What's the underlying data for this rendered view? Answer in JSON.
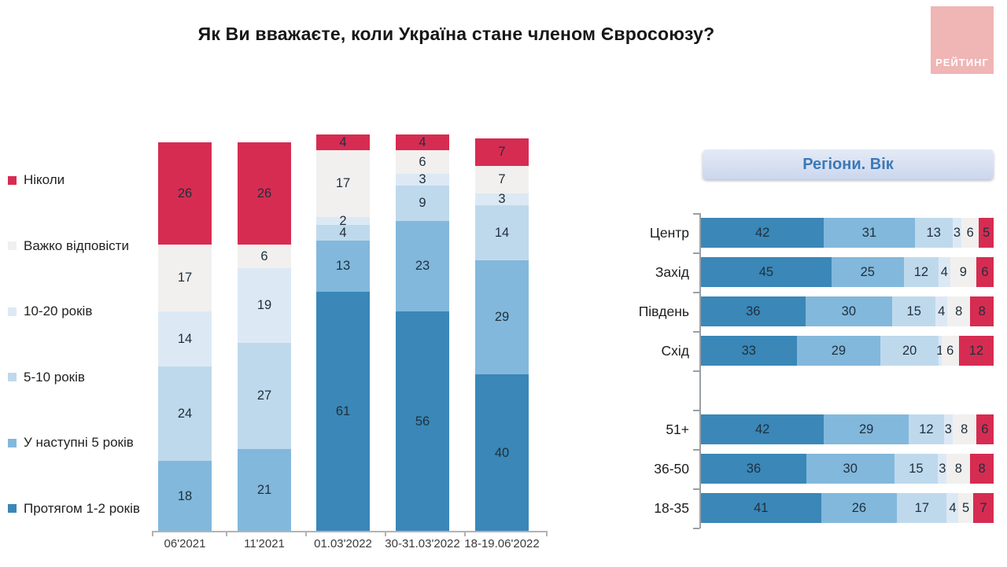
{
  "title": "Як Ви вважаєте, коли Україна стане членом Євросоюзу?",
  "logo": {
    "text": "РЕЙТИНГ",
    "bg_color": "#f0b5b5"
  },
  "colors": {
    "within_1_2_years": "#3a87b8",
    "next_5_years": "#82b8dc",
    "5_10_years": "#bfd9ec",
    "10_20_years": "#dce9f5",
    "hard_to_answer": "#f1f0ee",
    "never": "#d62c52",
    "label_text": "#20303d"
  },
  "legend": [
    {
      "label": "Ніколи",
      "color": "#d62c52"
    },
    {
      "label": "Важко відповісти",
      "color": "#f1f0ee"
    },
    {
      "label": "10-20 років",
      "color": "#dce9f5"
    },
    {
      "label": "5-10 років",
      "color": "#bfd9ec"
    },
    {
      "label": "У наступні 5 років",
      "color": "#82b8dc"
    },
    {
      "label": "Протягом 1-2 років",
      "color": "#3a87b8"
    }
  ],
  "chart_data": [
    {
      "type": "bar",
      "stacked": true,
      "orientation": "vertical",
      "title": "",
      "categories": [
        "06'2021",
        "11'2021",
        "01.03'2022",
        "30-31.03'2022",
        "18-19.06'2022"
      ],
      "series": [
        {
          "name": "Протягом 1-2 років",
          "color": "#3a87b8",
          "values": [
            null,
            null,
            61,
            56,
            40
          ]
        },
        {
          "name": "У наступні 5 років",
          "color": "#82b8dc",
          "values": [
            18,
            21,
            13,
            23,
            29
          ]
        },
        {
          "name": "5-10 років",
          "color": "#bfd9ec",
          "values": [
            24,
            27,
            4,
            9,
            14
          ]
        },
        {
          "name": "10-20 років",
          "color": "#dce9f5",
          "values": [
            14,
            19,
            2,
            3,
            3
          ]
        },
        {
          "name": "Важко відповісти",
          "color": "#f1f0ee",
          "values": [
            17,
            6,
            17,
            6,
            7
          ]
        },
        {
          "name": "Ніколи",
          "color": "#d62c52",
          "values": [
            26,
            26,
            4,
            4,
            7
          ]
        }
      ],
      "grid": false,
      "legend_position": "left"
    },
    {
      "type": "bar",
      "stacked": true,
      "orientation": "horizontal",
      "title": "Регіони. Вік",
      "categories": [
        "Центр",
        "Захід",
        "Південь",
        "Схід",
        "51+",
        "36-50",
        "18-35"
      ],
      "gap_after_index": 3,
      "series": [
        {
          "name": "Протягом 1-2 років",
          "color": "#3a87b8",
          "values": [
            42,
            45,
            36,
            33,
            42,
            36,
            41
          ]
        },
        {
          "name": "У наступні 5 років",
          "color": "#82b8dc",
          "values": [
            31,
            25,
            30,
            29,
            29,
            30,
            26
          ]
        },
        {
          "name": "5-10 років",
          "color": "#bfd9ec",
          "values": [
            13,
            12,
            15,
            20,
            12,
            15,
            17
          ]
        },
        {
          "name": "10-20 років",
          "color": "#dce9f5",
          "values": [
            3,
            4,
            4,
            1,
            3,
            3,
            4
          ]
        },
        {
          "name": "Важко відповісти",
          "color": "#f1f0ee",
          "values": [
            6,
            9,
            8,
            6,
            8,
            8,
            5
          ]
        },
        {
          "name": "Ніколи",
          "color": "#d62c52",
          "values": [
            5,
            6,
            8,
            12,
            6,
            8,
            7
          ]
        }
      ],
      "grid": false,
      "legend_position": "none"
    }
  ]
}
